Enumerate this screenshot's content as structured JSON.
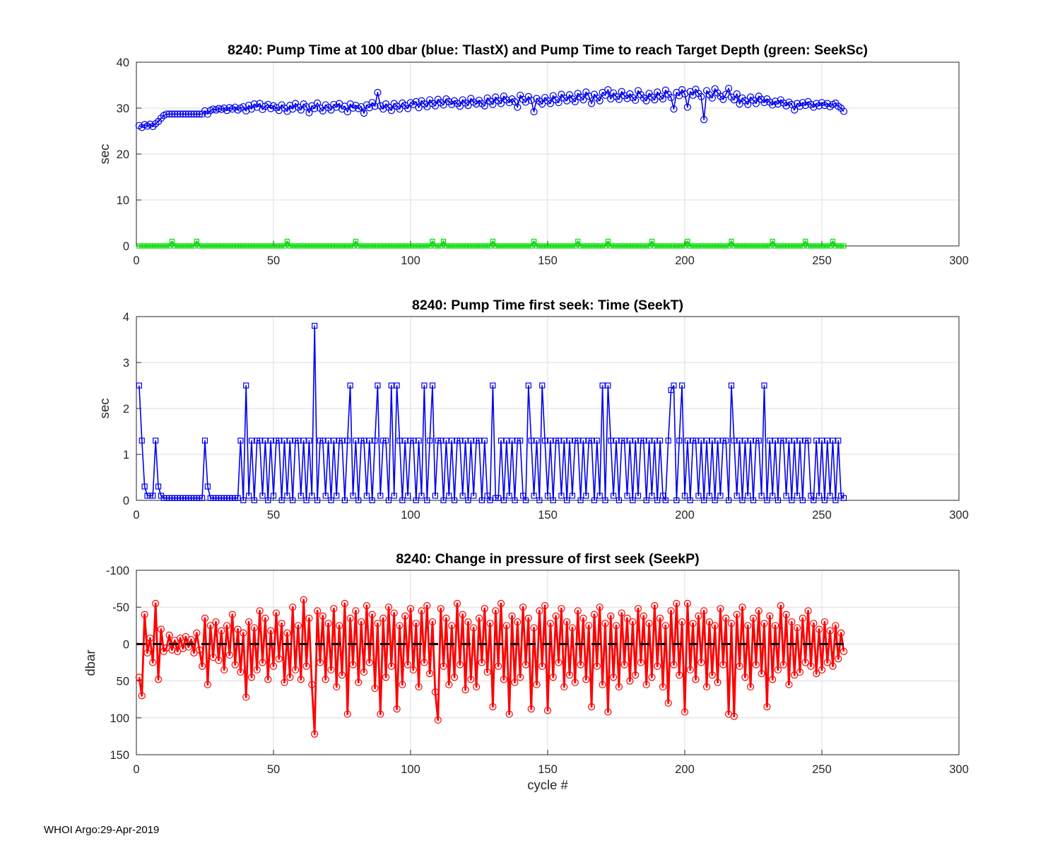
{
  "footer": "WHOI Argo:29-Apr-2019",
  "chart_data": [
    {
      "type": "line",
      "title": "8240:  Pump Time at 100 dbar (blue: TlastX) and Pump Time to reach Target Depth (green: SeekSc)",
      "ylabel": "sec",
      "xlim": [
        0,
        300
      ],
      "ylim": [
        0,
        40
      ],
      "xticks": [
        0,
        50,
        100,
        150,
        200,
        250,
        300
      ],
      "yticks": [
        0,
        10,
        20,
        30,
        40
      ],
      "grid": true,
      "series": [
        {
          "name": "TlastX",
          "color": "#0000ee",
          "marker": "circle",
          "marker_size": 4.5,
          "line_width": 1.6,
          "x_start": 1,
          "values": [
            26.2,
            25.8,
            26.4,
            26.1,
            26.5,
            26.0,
            26.6,
            27.1,
            27.8,
            28.4,
            28.7,
            28.7,
            28.7,
            28.7,
            28.7,
            28.7,
            28.7,
            28.7,
            28.7,
            28.7,
            28.7,
            28.7,
            28.7,
            28.7,
            29.4,
            28.7,
            29.5,
            29.8,
            29.6,
            29.9,
            29.7,
            30.0,
            29.5,
            30.1,
            29.8,
            30.2,
            29.6,
            30.0,
            30.3,
            29.4,
            30.6,
            29.8,
            30.9,
            30.2,
            31.0,
            29.7,
            30.4,
            30.8,
            29.9,
            30.5,
            30.1,
            29.5,
            30.7,
            30.0,
            29.3,
            30.6,
            29.8,
            31.0,
            30.2,
            29.6,
            30.9,
            30.3,
            29.0,
            30.5,
            29.9,
            31.1,
            30.0,
            29.4,
            30.7,
            30.1,
            29.6,
            30.8,
            30.2,
            31.0,
            29.8,
            30.4,
            29.2,
            30.9,
            30.0,
            30.6,
            29.9,
            30.3,
            28.9,
            30.7,
            30.1,
            31.2,
            30.4,
            33.4,
            30.5,
            29.8,
            30.9,
            30.2,
            29.5,
            31.0,
            30.4,
            29.8,
            31.1,
            30.6,
            29.9,
            31.2,
            30.8,
            31.4,
            30.1,
            31.6,
            30.9,
            30.3,
            31.8,
            31.0,
            30.5,
            31.9,
            31.2,
            30.7,
            32.0,
            31.4,
            30.8,
            31.6,
            31.0,
            30.4,
            31.8,
            31.1,
            30.6,
            32.1,
            31.3,
            30.9,
            31.7,
            31.0,
            30.5,
            32.2,
            31.5,
            30.8,
            32.4,
            31.6,
            31.0,
            32.6,
            31.8,
            31.2,
            32.0,
            31.4,
            30.2,
            32.8,
            31.9,
            31.3,
            32.5,
            31.7,
            29.2,
            32.1,
            31.5,
            30.9,
            32.3,
            31.6,
            31.0,
            32.7,
            31.8,
            31.2,
            33.0,
            32.2,
            31.6,
            32.9,
            32.0,
            31.4,
            33.2,
            32.4,
            31.8,
            33.5,
            32.6,
            31.0,
            33.0,
            32.2,
            31.6,
            33.4,
            32.8,
            34.0,
            32.0,
            33.3,
            32.5,
            31.9,
            33.6,
            32.7,
            32.1,
            33.1,
            32.3,
            31.7,
            33.8,
            32.9,
            32.2,
            31.6,
            33.2,
            32.4,
            31.8,
            33.5,
            32.6,
            32.0,
            33.9,
            33.0,
            32.3,
            29.8,
            33.4,
            32.7,
            34.0,
            33.1,
            30.2,
            33.6,
            32.8,
            34.1,
            33.2,
            32.5,
            27.5,
            33.8,
            32.9,
            32.2,
            34.2,
            33.3,
            32.6,
            31.9,
            33.0,
            34.3,
            32.4,
            31.8,
            33.1,
            30.9,
            32.2,
            31.6,
            30.8,
            32.4,
            31.7,
            31.0,
            32.6,
            31.9,
            31.2,
            32.0,
            31.3,
            30.7,
            31.5,
            30.9,
            31.8,
            31.1,
            30.5,
            31.3,
            30.8,
            29.6,
            31.0,
            30.4,
            31.2,
            30.6,
            31.4,
            30.8,
            30.2,
            31.0,
            30.5,
            31.2,
            30.6,
            31.0,
            30.3,
            30.8,
            31.1,
            30.4,
            30.0,
            29.3
          ]
        },
        {
          "name": "SeekSc",
          "color": "#00dd00",
          "marker": "square",
          "marker_size": 6,
          "line_width": 2,
          "x_start": 1,
          "length": 258,
          "baseline": 0,
          "spike_value": 1,
          "spike_cycles": [
            13,
            22,
            55,
            80,
            108,
            112,
            130,
            145,
            161,
            172,
            188,
            201,
            217,
            232,
            244,
            254
          ]
        }
      ]
    },
    {
      "type": "line",
      "title": "8240: Pump Time first seek: Time (SeekT)",
      "ylabel": "sec",
      "xlim": [
        0,
        300
      ],
      "ylim": [
        0,
        4
      ],
      "xticks": [
        0,
        50,
        100,
        150,
        200,
        250,
        300
      ],
      "yticks": [
        0,
        1,
        2,
        3,
        4
      ],
      "grid": true,
      "series": [
        {
          "name": "SeekT",
          "color": "#0000ee",
          "marker": "square",
          "marker_size": 7,
          "line_width": 1.6,
          "x_start": 1,
          "values": [
            2.5,
            1.3,
            0.3,
            0.1,
            0.1,
            0.1,
            1.3,
            0.3,
            0.1,
            0.05,
            0.05,
            0.05,
            0.05,
            0.05,
            0.05,
            0.05,
            0.05,
            0.05,
            0.05,
            0.05,
            0.05,
            0.05,
            0.05,
            0.05,
            1.3,
            0.3,
            0.05,
            0.05,
            0.05,
            0.05,
            0.05,
            0.05,
            0.05,
            0.05,
            0.05,
            0.05,
            0.05,
            1.3,
            0,
            2.5,
            0.1,
            1.3,
            0,
            1.3,
            1.3,
            0.1,
            1.3,
            0,
            1.3,
            0.1,
            1.3,
            1.3,
            0,
            1.3,
            0.1,
            1.3,
            0,
            1.3,
            1.3,
            0.1,
            1.3,
            0,
            1.3,
            0.1,
            3.8,
            0,
            1.3,
            1.3,
            0.1,
            1.3,
            0,
            1.3,
            0.1,
            1.3,
            1.3,
            0,
            1.3,
            2.5,
            0.1,
            1.3,
            0,
            1.3,
            1.3,
            0.1,
            1.3,
            0,
            1.3,
            2.5,
            0.1,
            1.3,
            1.3,
            0,
            2.5,
            0.1,
            2.5,
            1.3,
            0,
            1.3,
            0.1,
            1.3,
            1.3,
            0,
            1.3,
            0.1,
            2.5,
            0,
            1.3,
            2.5,
            0.1,
            1.3,
            1.3,
            0,
            1.3,
            0.1,
            1.3,
            0,
            1.3,
            1.3,
            0.1,
            1.3,
            0,
            1.3,
            0.1,
            1.3,
            1.3,
            0,
            1.3,
            0.1,
            0,
            2.5,
            0.05,
            0.05,
            1.3,
            0,
            1.3,
            0.1,
            1.3,
            0,
            1.3,
            1.3,
            0.1,
            0,
            2.5,
            1.3,
            0.1,
            1.3,
            0,
            2.5,
            1.3,
            0.1,
            1.3,
            0,
            1.3,
            1.3,
            0.1,
            1.3,
            0,
            1.3,
            0.1,
            1.3,
            1.3,
            0,
            1.3,
            0.1,
            1.3,
            1.3,
            0,
            1.3,
            0.1,
            2.5,
            0,
            2.5,
            1.3,
            0.1,
            1.3,
            0,
            1.3,
            1.3,
            0.1,
            1.3,
            0,
            1.3,
            0.1,
            1.3,
            1.3,
            0,
            1.3,
            0.1,
            1.3,
            0,
            1.3,
            0.1,
            0,
            1.3,
            2.4,
            2.5,
            0,
            1.3,
            2.5,
            0.1,
            1.3,
            0,
            1.3,
            1.3,
            0.1,
            1.3,
            0,
            1.3,
            0.1,
            1.3,
            0,
            1.3,
            0.1,
            1.3,
            1.3,
            0,
            2.5,
            1.3,
            0.1,
            1.3,
            0,
            1.3,
            0.1,
            1.3,
            0,
            1.3,
            1.3,
            0.1,
            2.5,
            0,
            1.3,
            0.1,
            1.3,
            0,
            1.3,
            1.3,
            0.1,
            1.3,
            0,
            1.3,
            0.1,
            1.3,
            0,
            1.3,
            1.3,
            0.1,
            0,
            1.3,
            0.1,
            1.3,
            0,
            1.3,
            0.1,
            1.3,
            0,
            1.3,
            0.1,
            0.05
          ]
        }
      ]
    },
    {
      "type": "line",
      "title": "8240: Change in pressure of first seek (SeekP)",
      "ylabel": "dbar",
      "xlabel": "cycle #",
      "xlim": [
        0,
        300
      ],
      "ylim": [
        -100,
        150
      ],
      "ydir": "reverse",
      "xticks": [
        0,
        50,
        100,
        150,
        200,
        250,
        300
      ],
      "yticks": [
        -100,
        -50,
        0,
        50,
        100,
        150
      ],
      "grid": true,
      "series": [
        {
          "name": "SeekP",
          "color": "#ff0000",
          "marker": "circle",
          "marker_size": 4.5,
          "line_width": 2.8,
          "x_start": 1,
          "values": [
            45,
            70,
            -40,
            12,
            -8,
            25,
            -55,
            48,
            -20,
            10,
            5,
            -12,
            8,
            -5,
            10,
            -8,
            6,
            -10,
            4,
            -6,
            12,
            -15,
            8,
            30,
            -35,
            55,
            -25,
            18,
            -30,
            22,
            -18,
            35,
            -25,
            15,
            -40,
            28,
            -20,
            38,
            -15,
            72,
            -30,
            45,
            -22,
            35,
            -45,
            25,
            -35,
            48,
            -18,
            30,
            -42,
            20,
            -28,
            52,
            -15,
            45,
            -50,
            35,
            -25,
            48,
            -60,
            30,
            -35,
            55,
            122,
            -45,
            25,
            -38,
            48,
            -28,
            35,
            -48,
            58,
            -25,
            42,
            -55,
            95,
            -35,
            28,
            -45,
            52,
            -30,
            38,
            -52,
            25,
            -40,
            60,
            -28,
            95,
            -35,
            45,
            -50,
            30,
            -42,
            88,
            -25,
            55,
            -38,
            28,
            -48,
            35,
            -28,
            58,
            -45,
            25,
            -52,
            40,
            -30,
            65,
            103,
            -48,
            30,
            -35,
            55,
            -25,
            45,
            -55,
            28,
            -40,
            62,
            -30,
            48,
            -22,
            58,
            -35,
            25,
            -48,
            38,
            -28,
            85,
            -45,
            30,
            -55,
            48,
            -25,
            95,
            -38,
            52,
            -30,
            45,
            -50,
            28,
            -35,
            88,
            -22,
            55,
            -45,
            30,
            -52,
            90,
            -28,
            45,
            -38,
            25,
            -48,
            58,
            -30,
            42,
            -22,
            52,
            -45,
            28,
            -35,
            48,
            -25,
            85,
            -40,
            30,
            -50,
            55,
            -28,
            92,
            -38,
            45,
            -25,
            58,
            -42,
            28,
            -35,
            50,
            -30,
            42,
            -48,
            25,
            -38,
            55,
            -28,
            45,
            -52,
            30,
            -35,
            58,
            -25,
            80,
            -45,
            28,
            -55,
            42,
            -30,
            92,
            -55,
            35,
            -28,
            48,
            -38,
            25,
            -45,
            58,
            -30,
            42,
            -25,
            52,
            -48,
            28,
            -35,
            95,
            -28,
            98,
            -40,
            30,
            -50,
            45,
            -25,
            58,
            -35,
            28,
            -45,
            40,
            -28,
            85,
            -38,
            48,
            -25,
            35,
            -52,
            28,
            -40,
            55,
            -30,
            42,
            -22,
            38,
            -35,
            25,
            -45,
            30,
            -28,
            40,
            -20,
            35,
            -30,
            25,
            -18,
            30,
            -25,
            20,
            -15,
            10
          ]
        },
        {
          "name": "zero-line",
          "color": "#000000",
          "marker": "none",
          "line_width": 3,
          "dash": "13 10",
          "constant": 0,
          "x_range": [
            0,
            258
          ]
        }
      ]
    }
  ]
}
